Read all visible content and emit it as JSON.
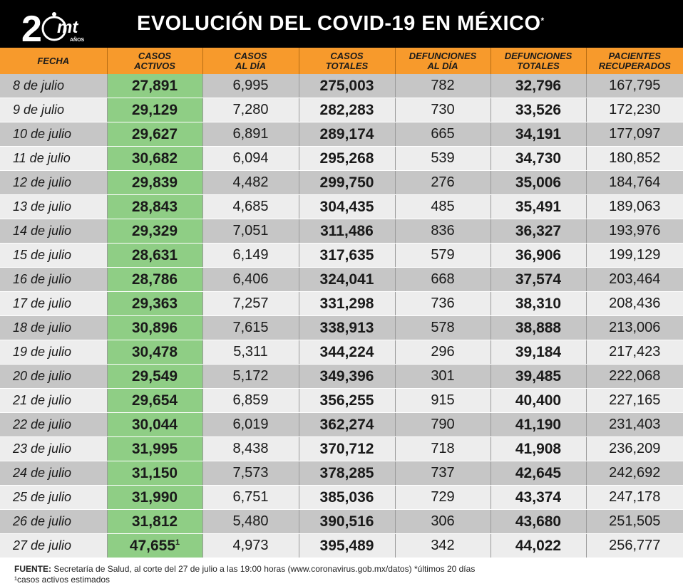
{
  "header": {
    "logo_text": "20mt",
    "logo_sub": "AÑOS",
    "title": "EVOLUCIÓN DEL COVID-19 EN MÉXICO",
    "title_mark": "*"
  },
  "table": {
    "columns": [
      [
        "FECHA"
      ],
      [
        "CASOS",
        "ACTIVOS"
      ],
      [
        "CASOS",
        "AL DÍA"
      ],
      [
        "CASOS",
        "TOTALES"
      ],
      [
        "DEFUNCIONES",
        "AL DÍA"
      ],
      [
        "DEFUNCIONES",
        "TOTALES"
      ],
      [
        "PACIENTES",
        "RECUPERADOS"
      ]
    ],
    "rows": [
      [
        "8 de julio",
        "27,891",
        "6,995",
        "275,003",
        "782",
        "32,796",
        "167,795"
      ],
      [
        "9 de julio",
        "29,129",
        "7,280",
        "282,283",
        "730",
        "33,526",
        "172,230"
      ],
      [
        "10 de julio",
        "29,627",
        "6,891",
        "289,174",
        "665",
        "34,191",
        "177,097"
      ],
      [
        "11 de julio",
        "30,682",
        "6,094",
        "295,268",
        "539",
        "34,730",
        "180,852"
      ],
      [
        "12 de julio",
        "29,839",
        "4,482",
        "299,750",
        "276",
        "35,006",
        "184,764"
      ],
      [
        "13 de julio",
        "28,843",
        "4,685",
        "304,435",
        "485",
        "35,491",
        "189,063"
      ],
      [
        "14 de julio",
        "29,329",
        "7,051",
        "311,486",
        "836",
        "36,327",
        "193,976"
      ],
      [
        "15 de julio",
        "28,631",
        "6,149",
        "317,635",
        "579",
        "36,906",
        "199,129"
      ],
      [
        "16 de julio",
        "28,786",
        "6,406",
        "324,041",
        "668",
        "37,574",
        "203,464"
      ],
      [
        "17 de julio",
        "29,363",
        "7,257",
        "331,298",
        "736",
        "38,310",
        "208,436"
      ],
      [
        "18 de julio",
        "30,896",
        "7,615",
        "338,913",
        "578",
        "38,888",
        "213,006"
      ],
      [
        "19 de julio",
        "30,478",
        "5,311",
        "344,224",
        "296",
        "39,184",
        "217,423"
      ],
      [
        "20 de julio",
        "29,549",
        "5,172",
        "349,396",
        "301",
        "39,485",
        "222,068"
      ],
      [
        "21 de julio",
        "29,654",
        "6,859",
        "356,255",
        "915",
        "40,400",
        "227,165"
      ],
      [
        "22 de julio",
        "30,044",
        "6,019",
        "362,274",
        "790",
        "41,190",
        "231,403"
      ],
      [
        "23 de julio",
        "31,995",
        "8,438",
        "370,712",
        "718",
        "41,908",
        "236,209"
      ],
      [
        "24 de julio",
        "31,150",
        "7,573",
        "378,285",
        "737",
        "42,645",
        "242,692"
      ],
      [
        "25 de julio",
        "31,990",
        "6,751",
        "385,036",
        "729",
        "43,374",
        "247,178"
      ],
      [
        "26 de julio",
        "31,812",
        "5,480",
        "390,516",
        "306",
        "43,680",
        "251,505"
      ],
      [
        "27 de julio",
        "47,655",
        "4,973",
        "395,489",
        "342",
        "44,022",
        "256,777"
      ]
    ],
    "last_row_note_mark": "1"
  },
  "footer": {
    "source_label": "FUENTE:",
    "source_text": " Secretaría de Salud, al corte del 27 de julio a las 19:00 horas (www.coronavirus.gob.mx/datos) *últimos 20 días",
    "note": "¹casos activos estimados"
  },
  "colors": {
    "header_bg": "#000000",
    "column_header_bg": "#f79a2c",
    "active_cases_bg": "#8fce85",
    "row_dark": "#c6c6c6",
    "row_light": "#ededed"
  }
}
